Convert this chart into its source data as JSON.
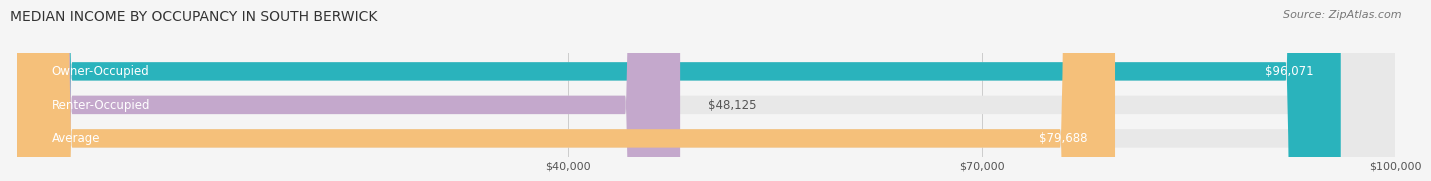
{
  "title": "MEDIAN INCOME BY OCCUPANCY IN SOUTH BERWICK",
  "source": "Source: ZipAtlas.com",
  "categories": [
    "Owner-Occupied",
    "Renter-Occupied",
    "Average"
  ],
  "values": [
    96071,
    48125,
    79688
  ],
  "bar_colors": [
    "#2ab3bc",
    "#c4a8cc",
    "#f5c07a"
  ],
  "bar_bg_color": "#e8e8e8",
  "labels": [
    "$96,071",
    "$48,125",
    "$79,688"
  ],
  "xmax": 100000,
  "xticks": [
    40000,
    70000,
    100000
  ],
  "xtick_labels": [
    "$40,000",
    "$70,000",
    "$100,000"
  ],
  "title_fontsize": 10,
  "source_fontsize": 8,
  "label_fontsize": 8.5,
  "bar_height": 0.55,
  "bg_color": "#f5f5f5"
}
